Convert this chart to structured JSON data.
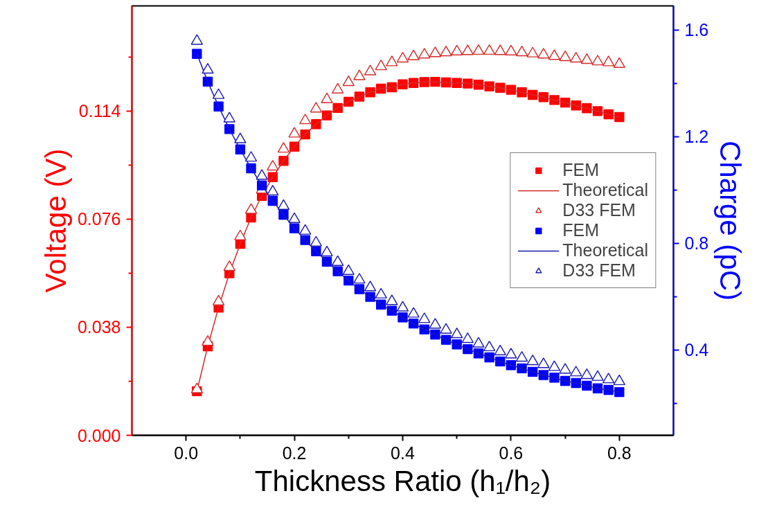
{
  "chart_data": {
    "type": "scatter",
    "xlabel": "Thickness Ratio (h₁/h₂)",
    "ylabel": "Voltage (V)",
    "y2label": "Charge (pC)",
    "x": [
      0.02,
      0.04,
      0.06,
      0.08,
      0.1,
      0.12,
      0.14,
      0.16,
      0.18,
      0.2,
      0.22,
      0.24,
      0.26,
      0.28,
      0.3,
      0.32,
      0.34,
      0.36,
      0.38,
      0.4,
      0.42,
      0.44,
      0.46,
      0.48,
      0.5,
      0.52,
      0.54,
      0.56,
      0.58,
      0.6,
      0.62,
      0.64,
      0.66,
      0.68,
      0.7,
      0.72,
      0.74,
      0.76,
      0.78,
      0.8
    ],
    "xlim": [
      -0.1,
      0.9
    ],
    "xticks": [
      {
        "value": 0,
        "label": "0.0"
      },
      0.2,
      0.4,
      0.6,
      0.8
    ],
    "ylim": [
      0,
      0.151
    ],
    "yticks": [
      {
        "value": 0,
        "label": "0.000"
      },
      0.038,
      0.076,
      0.114
    ],
    "y2lim": [
      0.08,
      1.69
    ],
    "y2ticks": [
      0.4,
      0.8,
      1.2,
      1.6
    ],
    "grid": false,
    "legend": "right",
    "series": [
      {
        "name": "FEM",
        "marker": "square",
        "color": "#ff0000",
        "values": [
          0.0155,
          0.0313,
          0.0449,
          0.057,
          0.0673,
          0.0766,
          0.0842,
          0.0908,
          0.0965,
          0.1015,
          0.1058,
          0.1094,
          0.1125,
          0.1151,
          0.1173,
          0.1191,
          0.1206,
          0.1219,
          0.1224,
          0.1234,
          0.1239,
          0.1242,
          0.1243,
          0.1241,
          0.1239,
          0.1237,
          0.1233,
          0.1227,
          0.1222,
          0.1215,
          0.1206,
          0.1197,
          0.1189,
          0.1179,
          0.117,
          0.116,
          0.115,
          0.114,
          0.1129,
          0.1119
        ]
      },
      {
        "name": "Theoretical",
        "type": "line",
        "marker": "none",
        "line_style": "solid",
        "color": "#d42a2a",
        "values": [
          0.0155,
          0.0313,
          0.0449,
          0.057,
          0.0673,
          0.0766,
          0.0842,
          0.0908,
          0.0965,
          0.1015,
          0.1058,
          0.1094,
          0.1125,
          0.1151,
          0.1173,
          0.1191,
          0.1206,
          0.1219,
          0.1224,
          0.1234,
          0.1239,
          0.1242,
          0.1243,
          0.1241,
          0.1239,
          0.1237,
          0.1233,
          0.1227,
          0.1222,
          0.1215,
          0.1206,
          0.1197,
          0.1189,
          0.1179,
          0.117,
          0.116,
          0.115,
          0.114,
          0.1129,
          0.1119
        ]
      },
      {
        "name": "D33 FEM",
        "marker": "triangle",
        "color": "#d42a2a",
        "values": [
          0.0161,
          0.0328,
          0.047,
          0.0591,
          0.0699,
          0.0792,
          0.0863,
          0.0944,
          0.1007,
          0.106,
          0.1107,
          0.1148,
          0.1181,
          0.1215,
          0.1241,
          0.1262,
          0.1279,
          0.1297,
          0.1311,
          0.1324,
          0.1332,
          0.1338,
          0.1343,
          0.1346,
          0.1349,
          0.135,
          0.1351,
          0.1351,
          0.135,
          0.1349,
          0.1346,
          0.1342,
          0.1338,
          0.1333,
          0.1329,
          0.1324,
          0.1319,
          0.1314,
          0.1311,
          0.1305
        ]
      },
      {
        "name": "FEM",
        "marker": "square",
        "axis": "y2",
        "color": "#0000ff",
        "values": [
          1.51,
          1.406,
          1.313,
          1.228,
          1.152,
          1.081,
          1.017,
          0.959,
          0.907,
          0.856,
          0.812,
          0.77,
          0.731,
          0.695,
          0.66,
          0.628,
          0.599,
          0.57,
          0.547,
          0.522,
          0.499,
          0.477,
          0.458,
          0.438,
          0.421,
          0.403,
          0.387,
          0.372,
          0.357,
          0.343,
          0.331,
          0.318,
          0.306,
          0.296,
          0.284,
          0.276,
          0.266,
          0.256,
          0.25,
          0.242
        ]
      },
      {
        "name": "Theoretical",
        "type": "line",
        "marker": "none",
        "line_style": "solid",
        "axis": "y2",
        "color": "#1a1ab0",
        "values": [
          1.51,
          1.406,
          1.313,
          1.228,
          1.152,
          1.081,
          1.017,
          0.959,
          0.907,
          0.856,
          0.812,
          0.77,
          0.731,
          0.695,
          0.66,
          0.628,
          0.599,
          0.57,
          0.547,
          0.522,
          0.499,
          0.477,
          0.458,
          0.438,
          0.421,
          0.403,
          0.387,
          0.372,
          0.357,
          0.343,
          0.331,
          0.318,
          0.306,
          0.296,
          0.284,
          0.276,
          0.266,
          0.256,
          0.25,
          0.242
        ]
      },
      {
        "name": "D33 FEM",
        "marker": "triangle",
        "axis": "y2",
        "color": "#1a1ab0",
        "values": [
          1.558,
          1.45,
          1.355,
          1.267,
          1.189,
          1.12,
          1.052,
          0.993,
          0.939,
          0.89,
          0.846,
          0.802,
          0.765,
          0.729,
          0.695,
          0.663,
          0.634,
          0.607,
          0.582,
          0.558,
          0.535,
          0.515,
          0.494,
          0.475,
          0.458,
          0.44,
          0.423,
          0.409,
          0.394,
          0.382,
          0.37,
          0.357,
          0.346,
          0.335,
          0.325,
          0.315,
          0.305,
          0.298,
          0.289,
          0.282
        ]
      }
    ]
  }
}
